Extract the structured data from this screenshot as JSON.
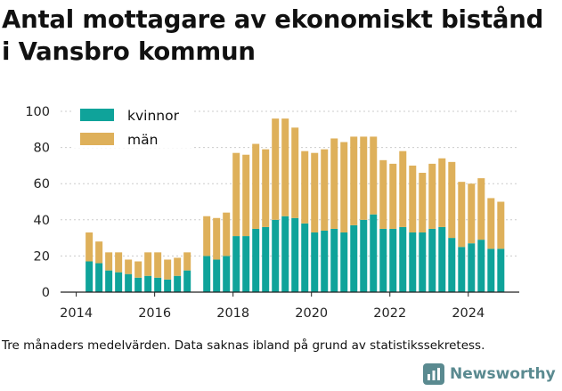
{
  "title_line1": "Antal mottagare av ekonomiskt bistånd",
  "title_line2": "i Vansbro kommun",
  "note": "Tre månaders medelvärden. Data saknas ibland på grund av statistikssekretess.",
  "brand": {
    "name": "Newsworthy",
    "icon": "newsworthy-logo-icon"
  },
  "colors": {
    "kvinnor": "#0fa39a",
    "man": "#deb05a",
    "axis": "#222222",
    "grid": "#cccccc"
  },
  "chart_data": {
    "type": "bar",
    "stacked": true,
    "ylim": [
      0,
      100
    ],
    "yticks": [
      0,
      20,
      40,
      60,
      80,
      100
    ],
    "xticks": [
      "2014",
      "2016",
      "2018",
      "2020",
      "2022",
      "2024"
    ],
    "xlim": [
      2013.6,
      2025.3
    ],
    "grid": true,
    "legend_position": "top-left",
    "x": [
      2014.33,
      2014.58,
      2014.83,
      2015.08,
      2015.33,
      2015.58,
      2015.83,
      2016.08,
      2016.33,
      2016.58,
      2016.83,
      2017.33,
      2017.58,
      2017.83,
      2018.08,
      2018.33,
      2018.58,
      2018.83,
      2019.08,
      2019.33,
      2019.58,
      2019.83,
      2020.08,
      2020.33,
      2020.58,
      2020.83,
      2021.08,
      2021.33,
      2021.58,
      2021.83,
      2022.08,
      2022.33,
      2022.58,
      2022.83,
      2023.08,
      2023.33,
      2023.58,
      2023.83,
      2024.08,
      2024.33,
      2024.58,
      2024.83
    ],
    "series": [
      {
        "name": "kvinnor",
        "color": "#0fa39a",
        "values": [
          17,
          16,
          12,
          11,
          10,
          8,
          9,
          8,
          7,
          9,
          12,
          20,
          18,
          20,
          31,
          31,
          35,
          36,
          40,
          42,
          41,
          38,
          33,
          34,
          35,
          33,
          37,
          40,
          43,
          35,
          35,
          36,
          33,
          33,
          35,
          36,
          30,
          25,
          27,
          29,
          24,
          24
        ]
      },
      {
        "name": "män",
        "color": "#deb05a",
        "values": [
          16,
          12,
          10,
          11,
          8,
          9,
          13,
          14,
          11,
          10,
          10,
          22,
          23,
          24,
          46,
          45,
          47,
          43,
          56,
          54,
          50,
          40,
          44,
          45,
          50,
          50,
          49,
          46,
          43,
          38,
          36,
          42,
          37,
          33,
          36,
          38,
          42,
          36,
          33,
          34,
          28,
          26
        ]
      }
    ]
  }
}
